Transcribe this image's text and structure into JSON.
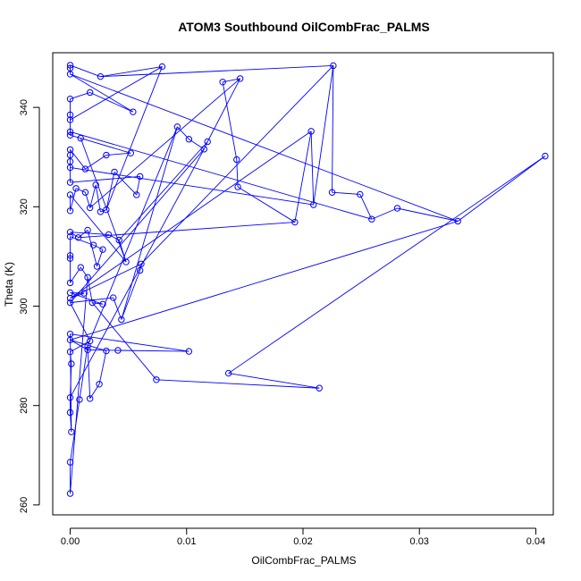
{
  "chart_data": {
    "type": "line",
    "title": "ATOM3 Southbound OilCombFrac_PALMS",
    "xlabel": "OilCombFrac_PALMS",
    "ylabel": "Theta (K)",
    "xlim": [
      -0.0015,
      0.0415
    ],
    "ylim": [
      258,
      351
    ],
    "x_ticks": [
      0.0,
      0.01,
      0.02,
      0.03,
      0.04
    ],
    "x_tick_labels": [
      "0.00",
      "0.01",
      "0.02",
      "0.03",
      "0.04"
    ],
    "y_ticks": [
      260,
      280,
      300,
      320,
      340
    ],
    "y_tick_labels": [
      "260",
      "280",
      "300",
      "320",
      "340"
    ],
    "grid": false,
    "legend": "none",
    "series": [
      {
        "color": "#0000ff",
        "marker": "open-circle",
        "line": true,
        "points": [
          [
            0.0,
            262.3
          ],
          [
            0.0,
            268.6
          ],
          [
            0.0008,
            281.2
          ],
          [
            0.0015,
            292.0
          ],
          [
            0.0001,
            274.7
          ],
          [
            0.0,
            278.6
          ],
          [
            0.0,
            281.6
          ],
          [
            0.0001,
            288.4
          ],
          [
            0.0,
            290.8
          ],
          [
            0.0017,
            281.4
          ],
          [
            0.0025,
            284.3
          ],
          [
            0.0031,
            291.0
          ],
          [
            0.0,
            293.2
          ],
          [
            0.0,
            294.4
          ],
          [
            0.0015,
            291.2
          ],
          [
            0.0041,
            291.1
          ],
          [
            0.0102,
            290.9
          ],
          [
            0.0017,
            293.0
          ],
          [
            0.0,
            300.7
          ],
          [
            0.0,
            301.6
          ],
          [
            0.0,
            302.7
          ],
          [
            0.0,
            304.7
          ],
          [
            0.0009,
            307.8
          ],
          [
            0.0012,
            302.6
          ],
          [
            0.0015,
            305.8
          ],
          [
            0.0019,
            300.7
          ],
          [
            0.0028,
            300.4
          ],
          [
            0.0037,
            301.7
          ],
          [
            0.0044,
            297.3
          ],
          [
            0.006,
            307.2
          ],
          [
            0.0061,
            308.5
          ],
          [
            0.0,
            309.6
          ],
          [
            0.0,
            310.2
          ],
          [
            0.0,
            314.0
          ],
          [
            0.0,
            314.9
          ],
          [
            0.0007,
            313.8
          ],
          [
            0.0015,
            315.3
          ],
          [
            0.002,
            312.3
          ],
          [
            0.0023,
            308.0
          ],
          [
            0.0028,
            311.4
          ],
          [
            0.0033,
            314.4
          ],
          [
            0.0042,
            313.3
          ],
          [
            0.0048,
            308.9
          ],
          [
            0.0,
            319.2
          ],
          [
            0.0,
            322.4
          ],
          [
            0.0005,
            323.7
          ],
          [
            0.0013,
            322.9
          ],
          [
            0.0017,
            319.8
          ],
          [
            0.0022,
            324.4
          ],
          [
            0.0026,
            319.0
          ],
          [
            0.0031,
            319.4
          ],
          [
            0.0038,
            327.0
          ],
          [
            0.0057,
            322.4
          ],
          [
            0.006,
            326.1
          ],
          [
            0.0,
            324.9
          ],
          [
            0.0,
            327.9
          ],
          [
            0.0,
            329.1
          ],
          [
            0.0,
            331.5
          ],
          [
            0.0,
            330.4
          ],
          [
            0.0013,
            327.6
          ],
          [
            0.0031,
            330.4
          ],
          [
            0.0052,
            330.8
          ],
          [
            0.0009,
            333.8
          ],
          [
            0.0,
            334.4
          ],
          [
            0.0,
            335.1
          ],
          [
            0.0,
            337.5
          ],
          [
            0.0,
            338.5
          ],
          [
            0.0,
            341.7
          ],
          [
            0.0017,
            343.0
          ],
          [
            0.0054,
            339.1
          ],
          [
            0.0,
            346.7
          ],
          [
            0.0,
            347.9
          ],
          [
            0.0,
            348.5
          ],
          [
            0.0026,
            346.2
          ],
          [
            0.0079,
            348.2
          ],
          [
            0.0092,
            336.1
          ],
          [
            0.0102,
            333.6
          ],
          [
            0.0115,
            331.6
          ],
          [
            0.0118,
            333.1
          ],
          [
            0.0131,
            345.1
          ],
          [
            0.0146,
            345.8
          ],
          [
            0.0143,
            329.5
          ],
          [
            0.0144,
            324.0
          ],
          [
            0.0193,
            316.9
          ],
          [
            0.0207,
            335.2
          ],
          [
            0.0209,
            320.4
          ],
          [
            0.0226,
            348.4
          ],
          [
            0.0225,
            322.9
          ],
          [
            0.0249,
            322.5
          ],
          [
            0.0259,
            317.5
          ],
          [
            0.0281,
            319.7
          ],
          [
            0.0333,
            317.1
          ],
          [
            0.0408,
            330.2
          ],
          [
            0.0136,
            286.5
          ],
          [
            0.0214,
            283.5
          ],
          [
            0.0074,
            285.2
          ]
        ],
        "segments": [
          [
            0,
            1
          ],
          [
            1,
            2
          ],
          [
            2,
            3
          ],
          [
            3,
            9
          ],
          [
            9,
            10
          ],
          [
            10,
            11
          ],
          [
            11,
            12
          ],
          [
            12,
            14
          ],
          [
            14,
            15
          ],
          [
            15,
            16
          ],
          [
            16,
            13
          ],
          [
            13,
            4
          ],
          [
            4,
            5
          ],
          [
            5,
            6
          ],
          [
            6,
            7
          ],
          [
            7,
            8
          ],
          [
            8,
            17
          ],
          [
            17,
            18
          ],
          [
            18,
            27
          ],
          [
            27,
            28
          ],
          [
            28,
            29
          ],
          [
            29,
            30
          ],
          [
            30,
            19
          ],
          [
            19,
            23
          ],
          [
            23,
            20
          ],
          [
            20,
            26
          ],
          [
            26,
            25
          ],
          [
            25,
            24
          ],
          [
            24,
            22
          ],
          [
            22,
            21
          ],
          [
            21,
            32
          ],
          [
            32,
            31
          ],
          [
            31,
            33
          ],
          [
            33,
            37
          ],
          [
            37,
            39
          ],
          [
            39,
            38
          ],
          [
            38,
            36
          ],
          [
            36,
            35
          ],
          [
            35,
            34
          ],
          [
            34,
            40
          ],
          [
            40,
            41
          ],
          [
            41,
            42
          ],
          [
            42,
            44
          ],
          [
            44,
            43
          ],
          [
            43,
            45
          ],
          [
            45,
            46
          ],
          [
            46,
            47
          ],
          [
            47,
            48
          ],
          [
            48,
            49
          ],
          [
            49,
            50
          ],
          [
            50,
            51
          ],
          [
            51,
            52
          ],
          [
            52,
            53
          ],
          [
            53,
            54
          ],
          [
            54,
            55
          ],
          [
            55,
            56
          ],
          [
            56,
            58
          ],
          [
            58,
            57
          ],
          [
            57,
            59
          ],
          [
            59,
            60
          ],
          [
            60,
            61
          ],
          [
            61,
            62
          ],
          [
            62,
            63
          ],
          [
            63,
            64
          ],
          [
            64,
            65
          ],
          [
            65,
            66
          ],
          [
            66,
            67
          ],
          [
            67,
            68
          ],
          [
            68,
            69
          ],
          [
            69,
            70
          ],
          [
            70,
            71
          ],
          [
            71,
            72
          ],
          [
            72,
            73
          ],
          [
            73,
            74
          ],
          [
            74,
            65
          ],
          [
            3,
            75
          ],
          [
            75,
            76
          ],
          [
            76,
            77
          ],
          [
            77,
            78
          ],
          [
            78,
            80
          ],
          [
            80,
            79
          ],
          [
            79,
            81
          ],
          [
            81,
            82
          ],
          [
            82,
            83
          ],
          [
            83,
            84
          ],
          [
            84,
            85
          ],
          [
            85,
            86
          ],
          [
            86,
            87
          ],
          [
            87,
            88
          ],
          [
            88,
            89
          ],
          [
            89,
            90
          ],
          [
            90,
            91
          ],
          [
            91,
            92
          ],
          [
            92,
            93
          ],
          [
            93,
            94
          ],
          [
            94,
            95
          ],
          [
            95,
            25
          ],
          [
            9,
            96
          ],
          [
            96,
            38
          ],
          [
            18,
            77
          ],
          [
            47,
            80
          ],
          [
            30,
            86
          ],
          [
            64,
            89
          ],
          [
            70,
            91
          ],
          [
            12,
            91
          ],
          [
            55,
            85
          ],
          [
            41,
            78
          ],
          [
            19,
            84
          ],
          [
            0,
            24
          ],
          [
            6,
            77
          ],
          [
            73,
            86
          ],
          [
            35,
            83
          ],
          [
            50,
            74
          ],
          [
            42,
            62
          ],
          [
            28,
            75
          ]
        ]
      }
    ]
  }
}
